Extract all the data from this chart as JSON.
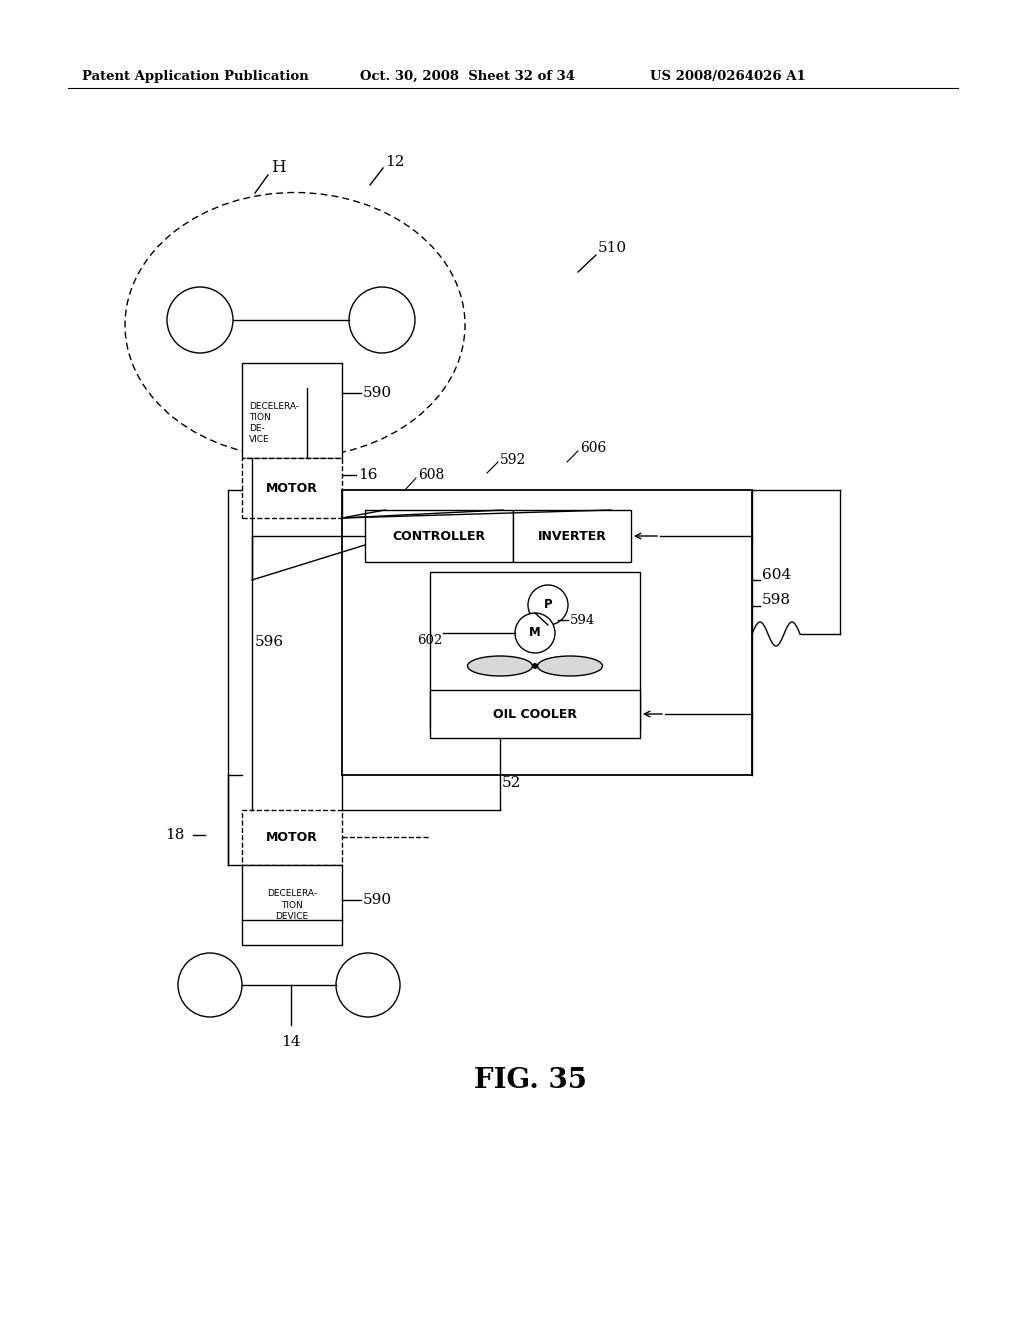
{
  "bg_color": "#ffffff",
  "header_left": "Patent Application Publication",
  "header_mid": "Oct. 30, 2008  Sheet 32 of 34",
  "header_right": "US 2008/0264026 A1",
  "fig_label": "FIG. 35"
}
